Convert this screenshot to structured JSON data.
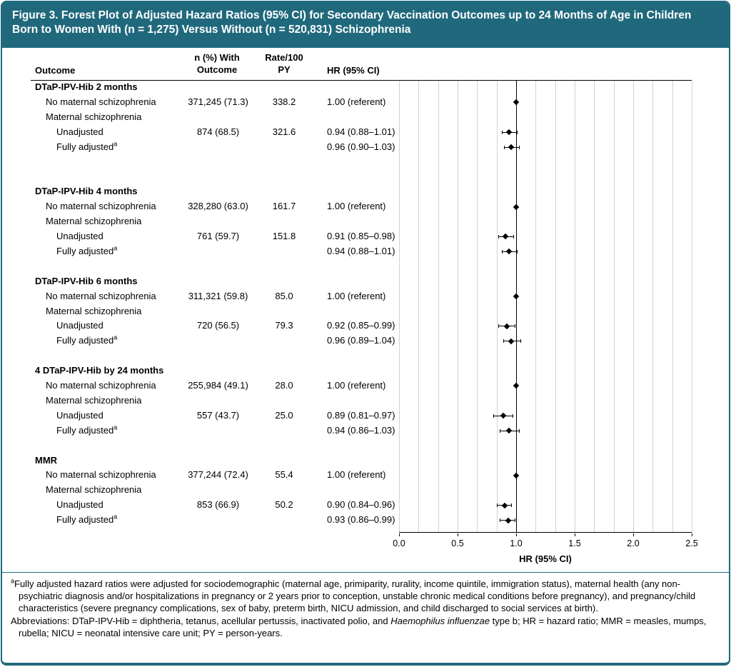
{
  "colors": {
    "accent": "#20697D",
    "grid": "#D2D2D2",
    "text": "#000000"
  },
  "figure": {
    "title": "Figure 3. Forest Plot of Adjusted Hazard Ratios (95% CI) for Secondary Vaccination Outcomes up to 24 Months of Age in Children Born to Women With (n = 1,275) Versus Without (n = 520,831) Schizophrenia"
  },
  "table": {
    "col_outcome": "Outcome",
    "col_n": "n (%) With\nOutcome",
    "col_rate": "Rate/100\nPY",
    "col_hr": "HR (95% CI)"
  },
  "chart_data": {
    "type": "forest",
    "xlabel": "HR (95% CI)",
    "xlim": [
      0.0,
      2.5
    ],
    "xticks": [
      "0.0",
      "0.5",
      "1.0",
      "1.5",
      "2.0",
      "2.5"
    ],
    "refline": 1.0,
    "grid": true,
    "legend": "none",
    "groups": [
      {
        "label": "DTaP-IPV-Hib 2 months",
        "rows": [
          {
            "label": "No maternal schizophrenia",
            "indent": 1,
            "n": "371,245 (71.3)",
            "rate": "338.2",
            "hr_text": "1.00 (referent)",
            "hr": 1.0
          },
          {
            "label": "Maternal schizophrenia",
            "indent": 1
          },
          {
            "label": "Unadjusted",
            "indent": 2,
            "n": "874 (68.5)",
            "rate": "321.6",
            "hr_text": "0.94 (0.88–1.01)",
            "hr": 0.94,
            "lo": 0.88,
            "hi": 1.01
          },
          {
            "label": "Fully adjusted",
            "sup": "a",
            "indent": 2,
            "hr_text": "0.96 (0.90–1.03)",
            "hr": 0.96,
            "lo": 0.9,
            "hi": 1.03
          }
        ]
      },
      {
        "label": "DTaP-IPV-Hib 4 months",
        "rows": [
          {
            "label": "No maternal schizophrenia",
            "indent": 1,
            "n": "328,280 (63.0)",
            "rate": "161.7",
            "hr_text": "1.00 (referent)",
            "hr": 1.0
          },
          {
            "label": "Maternal schizophrenia",
            "indent": 1
          },
          {
            "label": "Unadjusted",
            "indent": 2,
            "n": "761 (59.7)",
            "rate": "151.8",
            "hr_text": "0.91 (0.85–0.98)",
            "hr": 0.91,
            "lo": 0.85,
            "hi": 0.98
          },
          {
            "label": "Fully adjusted",
            "sup": "a",
            "indent": 2,
            "hr_text": "0.94 (0.88–1.01)",
            "hr": 0.94,
            "lo": 0.88,
            "hi": 1.01
          }
        ]
      },
      {
        "label": "DTaP-IPV-Hib 6 months",
        "rows": [
          {
            "label": "No maternal schizophrenia",
            "indent": 1,
            "n": "311,321 (59.8)",
            "rate": "85.0",
            "hr_text": "1.00 (referent)",
            "hr": 1.0
          },
          {
            "label": "Maternal schizophrenia",
            "indent": 1
          },
          {
            "label": "Unadjusted",
            "indent": 2,
            "n": "720 (56.5)",
            "rate": "79.3",
            "hr_text": "0.92 (0.85–0.99)",
            "hr": 0.92,
            "lo": 0.85,
            "hi": 0.99
          },
          {
            "label": "Fully adjusted",
            "sup": "a",
            "indent": 2,
            "hr_text": "0.96 (0.89–1.04)",
            "hr": 0.96,
            "lo": 0.89,
            "hi": 1.04
          }
        ]
      },
      {
        "label": "4 DTaP-IPV-Hib by 24 months",
        "rows": [
          {
            "label": "No maternal schizophrenia",
            "indent": 1,
            "n": "255,984 (49.1)",
            "rate": "28.0",
            "hr_text": "1.00 (referent)",
            "hr": 1.0
          },
          {
            "label": "Maternal schizophrenia",
            "indent": 1
          },
          {
            "label": "Unadjusted",
            "indent": 2,
            "n": "557 (43.7)",
            "rate": "25.0",
            "hr_text": "0.89 (0.81–0.97)",
            "hr": 0.89,
            "lo": 0.81,
            "hi": 0.97
          },
          {
            "label": "Fully adjusted",
            "sup": "a",
            "indent": 2,
            "hr_text": "0.94 (0.86–1.03)",
            "hr": 0.94,
            "lo": 0.86,
            "hi": 1.03
          }
        ]
      },
      {
        "label": "MMR",
        "rows": [
          {
            "label": "No maternal schizophrenia",
            "indent": 1,
            "n": "377,244 (72.4)",
            "rate": "55.4",
            "hr_text": "1.00 (referent)",
            "hr": 1.0
          },
          {
            "label": "Maternal schizophrenia",
            "indent": 1
          },
          {
            "label": "Unadjusted",
            "indent": 2,
            "n": "853 (66.9)",
            "rate": "50.2",
            "hr_text": "0.90 (0.84–0.96)",
            "hr": 0.9,
            "lo": 0.84,
            "hi": 0.96
          },
          {
            "label": "Fully adjusted",
            "sup": "a",
            "indent": 2,
            "hr_text": "0.93 (0.86–0.99)",
            "hr": 0.93,
            "lo": 0.86,
            "hi": 0.99
          }
        ]
      }
    ]
  },
  "footnotes": {
    "a_marker": "a",
    "a_text": "Fully adjusted hazard ratios were adjusted for sociodemographic (maternal age, primiparity, rurality, income quintile, immigration status), maternal health (any non-psychiatric diagnosis and/or hospitalizations in pregnancy or 2 years prior to conception, unstable chronic medical conditions before pregnancy), and pregnancy/child characteristics (severe pregnancy complications, sex of baby, preterm birth, NICU admission, and child discharged to social services at birth).",
    "abbr_pre": "Abbreviations: DTaP-IPV-Hib = diphtheria, tetanus, acellular pertussis, inactivated polio, and ",
    "abbr_italic": "Haemophilus influenzae",
    "abbr_post": " type b; HR = hazard ratio; MMR = measles, mumps, rubella; NICU = neonatal intensive care unit; PY = person-years."
  }
}
